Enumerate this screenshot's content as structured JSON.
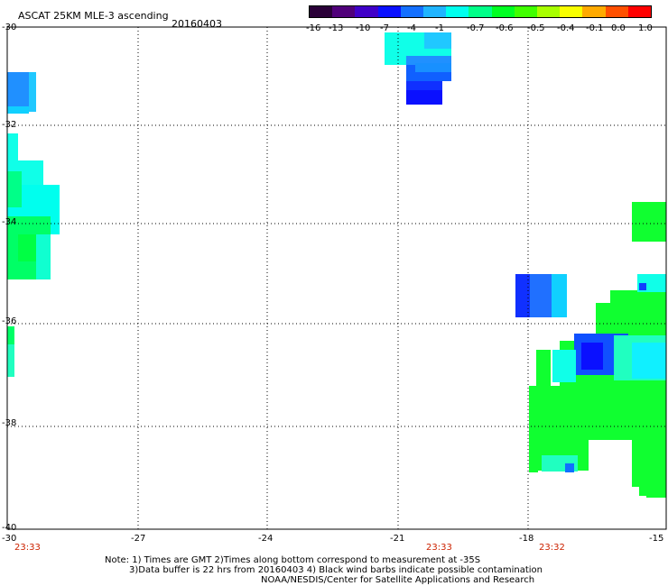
{
  "header": {
    "title": "ASCAT 25KM MLE-3 ascending",
    "date": "20160403"
  },
  "colorbar": {
    "colors": [
      "#2a0038",
      "#50007a",
      "#4000c8",
      "#0a10ff",
      "#1470ff",
      "#20b4ff",
      "#00ffee",
      "#00ff88",
      "#00ff22",
      "#40ff00",
      "#a8ff00",
      "#f8ff00",
      "#ffaa00",
      "#ff5000",
      "#ff0000"
    ],
    "labels": [
      "-16",
      "-13",
      "-10",
      "-7",
      "-4",
      "-1",
      "-0.7",
      "-0.6",
      "-0.5",
      "-0.4",
      "-0.1",
      "0.0",
      "1.0"
    ]
  },
  "axes": {
    "x_ticks": [
      "-30",
      "-27",
      "-24",
      "-21",
      "-18",
      "-15"
    ],
    "y_ticks": [
      "-30",
      "-32",
      "-34",
      "-36",
      "-38",
      "-40"
    ]
  },
  "times": [
    "23:33",
    "23:33",
    "23:32"
  ],
  "notes": {
    "line1": "Note: 1) Times are GMT 2)Times along bottom correspond to measurement at -35S",
    "line2": "3)Data buffer is 22 hrs from 20160403 4) Black wind barbs indicate possible contamination",
    "line3": "NOAA/NESDIS/Center for Satellite Applications and Research"
  }
}
